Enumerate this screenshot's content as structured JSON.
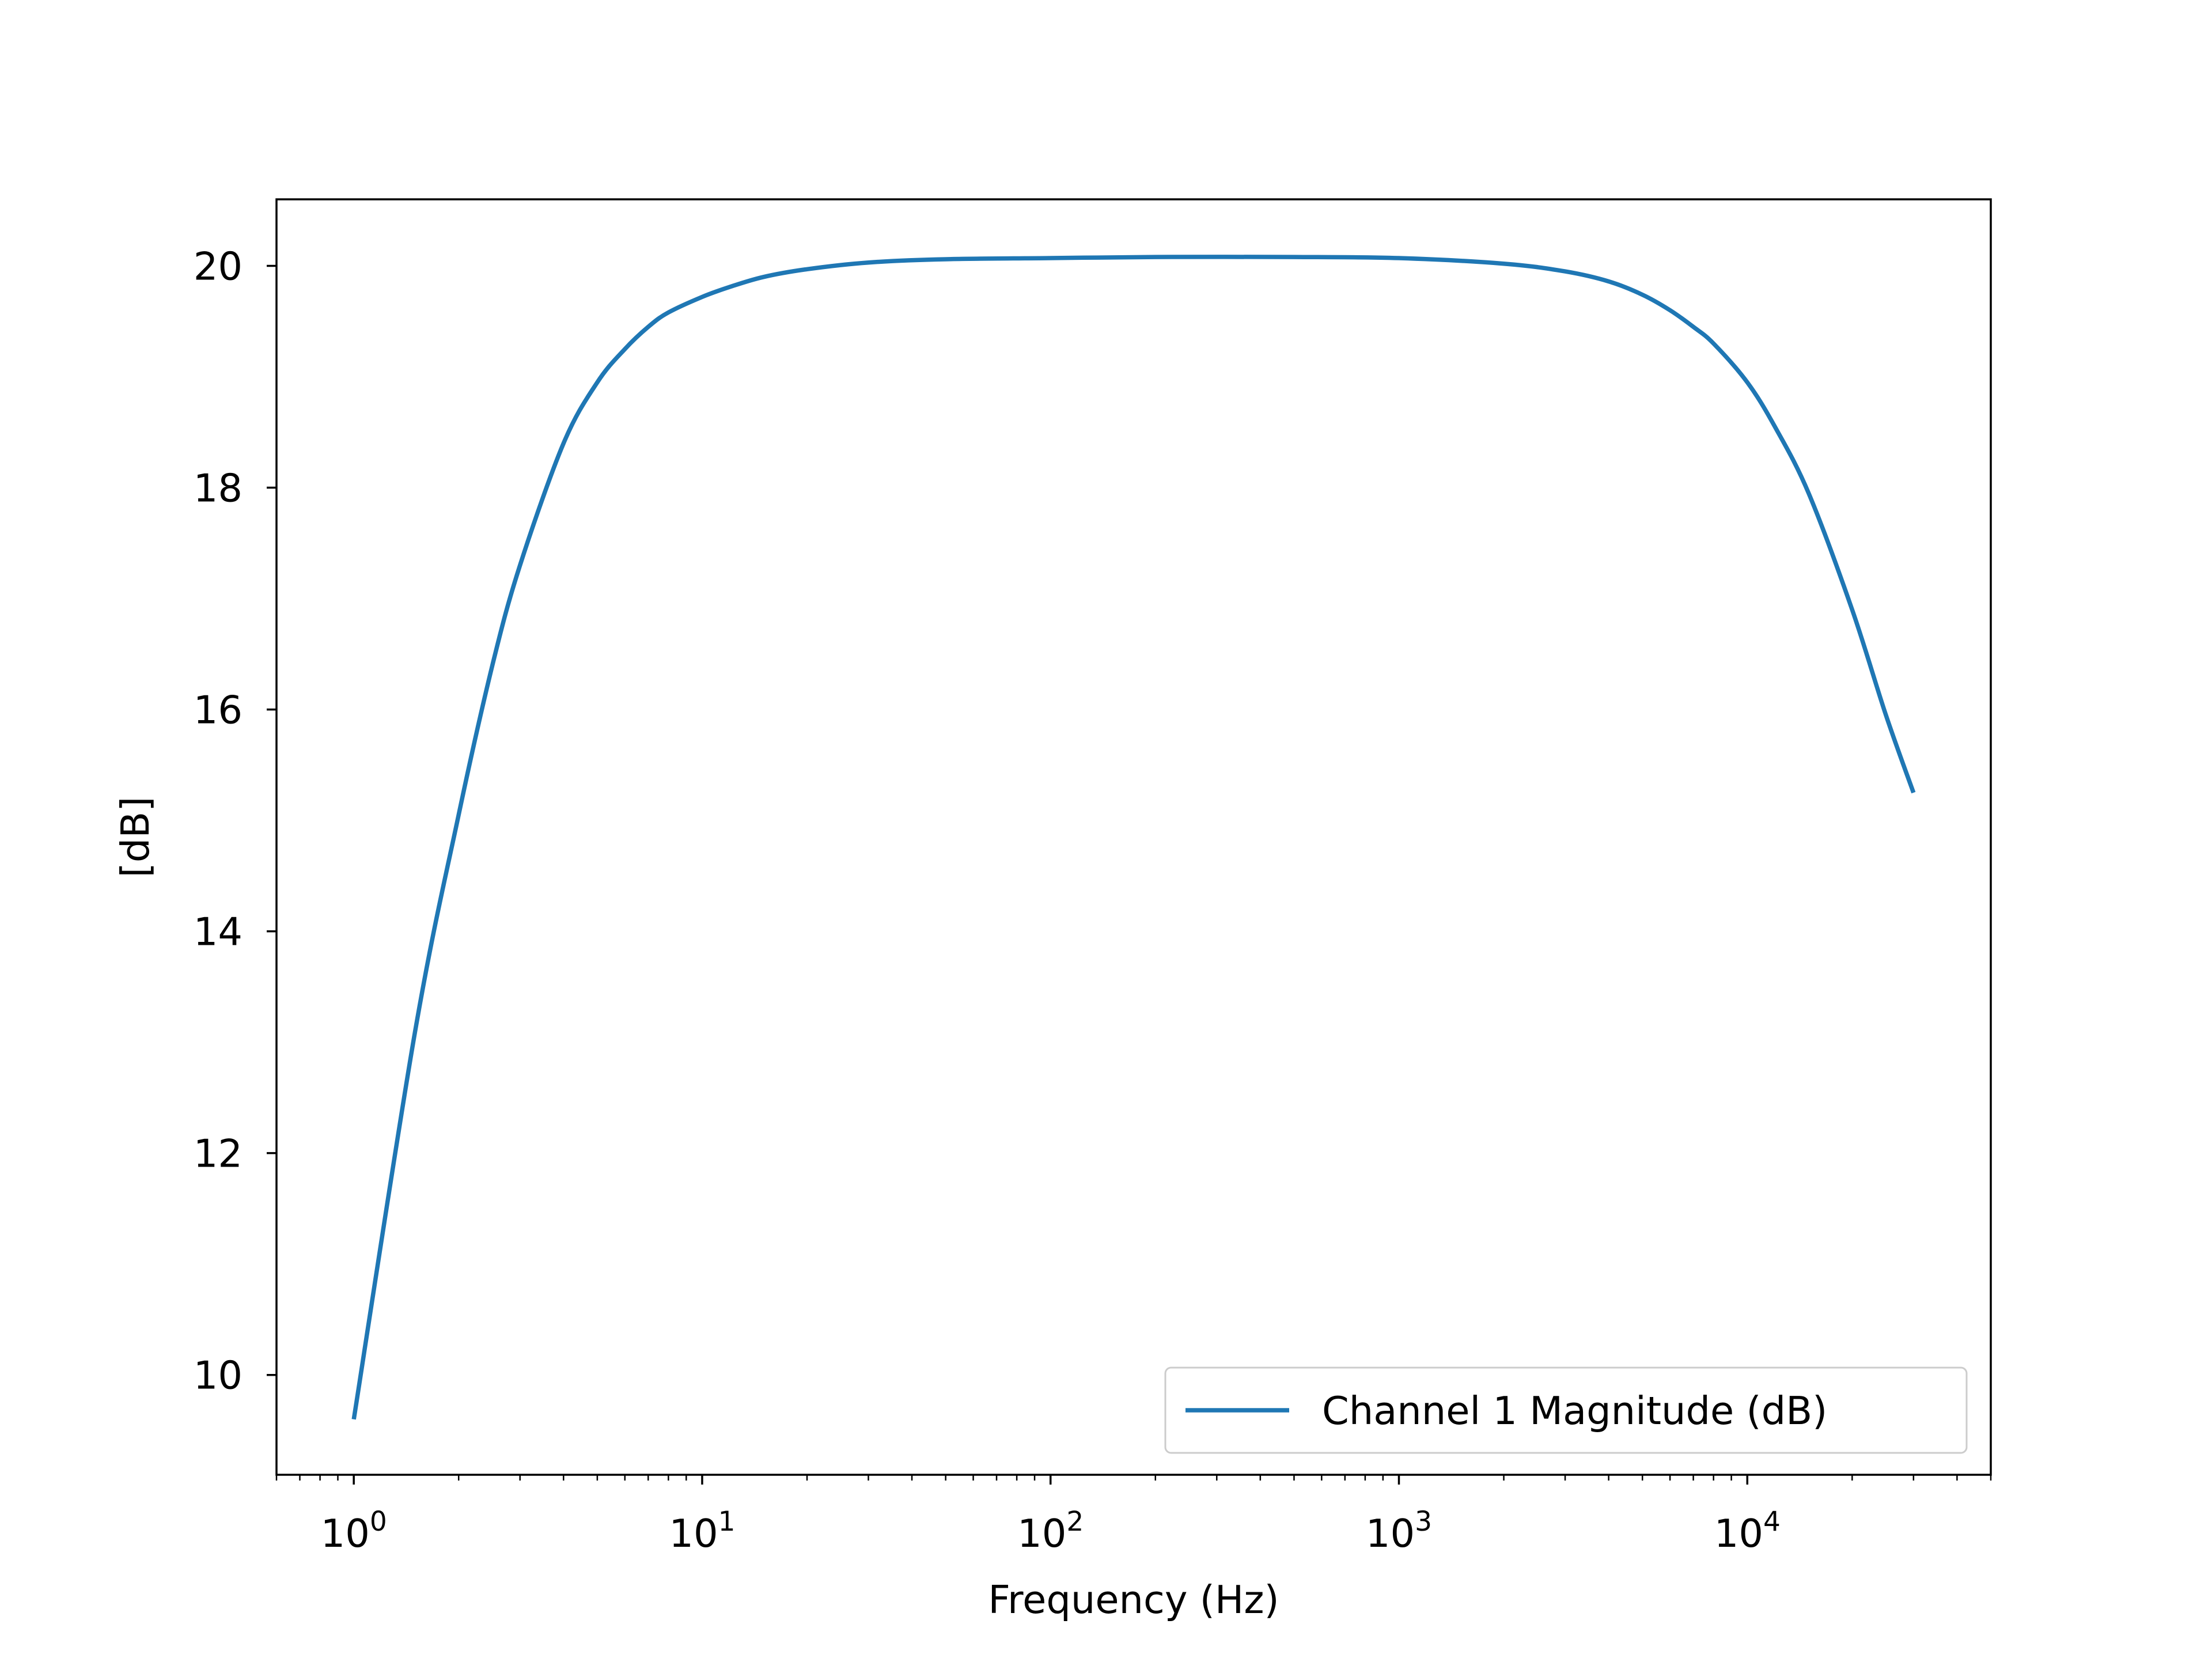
{
  "chart_data": {
    "type": "line",
    "title": "",
    "xlabel": "Frequency (Hz)",
    "ylabel": "[dB]",
    "x_scale": "log",
    "xlim": [
      0.6,
      50000
    ],
    "ylim": [
      9.1,
      20.6
    ],
    "x_ticks": [
      {
        "value": 1,
        "base": "10",
        "exp": "0"
      },
      {
        "value": 10,
        "base": "10",
        "exp": "1"
      },
      {
        "value": 100,
        "base": "10",
        "exp": "2"
      },
      {
        "value": 1000,
        "base": "10",
        "exp": "3"
      },
      {
        "value": 10000,
        "base": "10",
        "exp": "4"
      }
    ],
    "y_ticks": [
      {
        "value": 10,
        "label": "10"
      },
      {
        "value": 12,
        "label": "12"
      },
      {
        "value": 14,
        "label": "14"
      },
      {
        "value": 16,
        "label": "16"
      },
      {
        "value": 18,
        "label": "18"
      },
      {
        "value": 20,
        "label": "20"
      }
    ],
    "grid": false,
    "legend_position": "lower-right",
    "series": [
      {
        "name": "Channel 1 Magnitude (dB)",
        "color": "#1f77b4",
        "x": [
          1,
          1.5,
          2,
          2.5,
          3,
          4,
          5,
          6,
          7,
          8,
          10,
          12,
          15,
          20,
          30,
          50,
          100,
          200,
          500,
          1000,
          2000,
          3000,
          4000,
          5000,
          6000,
          7000,
          8000,
          10000,
          12000,
          15000,
          20000,
          25000,
          30000
        ],
        "y": [
          9.6,
          13.1,
          15.05,
          16.4,
          17.3,
          18.4,
          18.95,
          19.25,
          19.45,
          19.58,
          19.72,
          19.81,
          19.9,
          19.97,
          20.03,
          20.06,
          20.07,
          20.08,
          20.08,
          20.07,
          20.02,
          19.95,
          19.86,
          19.74,
          19.6,
          19.45,
          19.3,
          18.95,
          18.55,
          17.95,
          16.9,
          15.95,
          15.25
        ]
      }
    ]
  }
}
